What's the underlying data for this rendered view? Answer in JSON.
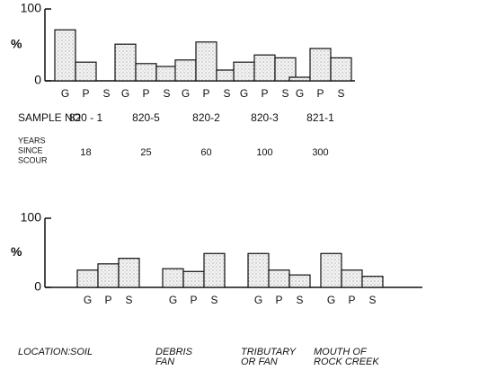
{
  "chart_data": [
    {
      "type": "bar",
      "y_label": "%",
      "ylim": [
        0,
        100
      ],
      "yticks": [
        0,
        100
      ],
      "category_label": "SAMPLE NO",
      "categories": [
        "820 - 1",
        "820-5",
        "820-2",
        "820-3",
        "821-1"
      ],
      "row_label": [
        "YEARS",
        "SINCE",
        "SCOUR"
      ],
      "row_values": [
        18,
        25,
        60,
        100,
        300
      ],
      "series": [
        {
          "name": "G",
          "values": [
            71,
            51,
            29,
            26,
            5
          ]
        },
        {
          "name": "P",
          "values": [
            26,
            24,
            54,
            36,
            45
          ]
        },
        {
          "name": "S",
          "values": [
            0,
            20,
            15,
            32,
            32
          ]
        }
      ]
    },
    {
      "type": "bar",
      "y_label": "%",
      "ylim": [
        0,
        100
      ],
      "yticks": [
        0,
        100
      ],
      "category_label": "LOCATION:",
      "categories": [
        [
          "SOIL"
        ],
        [
          "DEBRIS",
          "FAN"
        ],
        [
          "TRIBUTARY",
          "OR FAN"
        ],
        [
          "MOUTH OF",
          "ROCK CREEK"
        ]
      ],
      "series": [
        {
          "name": "G",
          "values": [
            25,
            27,
            49,
            49
          ]
        },
        {
          "name": "P",
          "values": [
            34,
            23,
            25,
            25
          ]
        },
        {
          "name": "S",
          "values": [
            42,
            49,
            18,
            16
          ]
        }
      ]
    }
  ]
}
